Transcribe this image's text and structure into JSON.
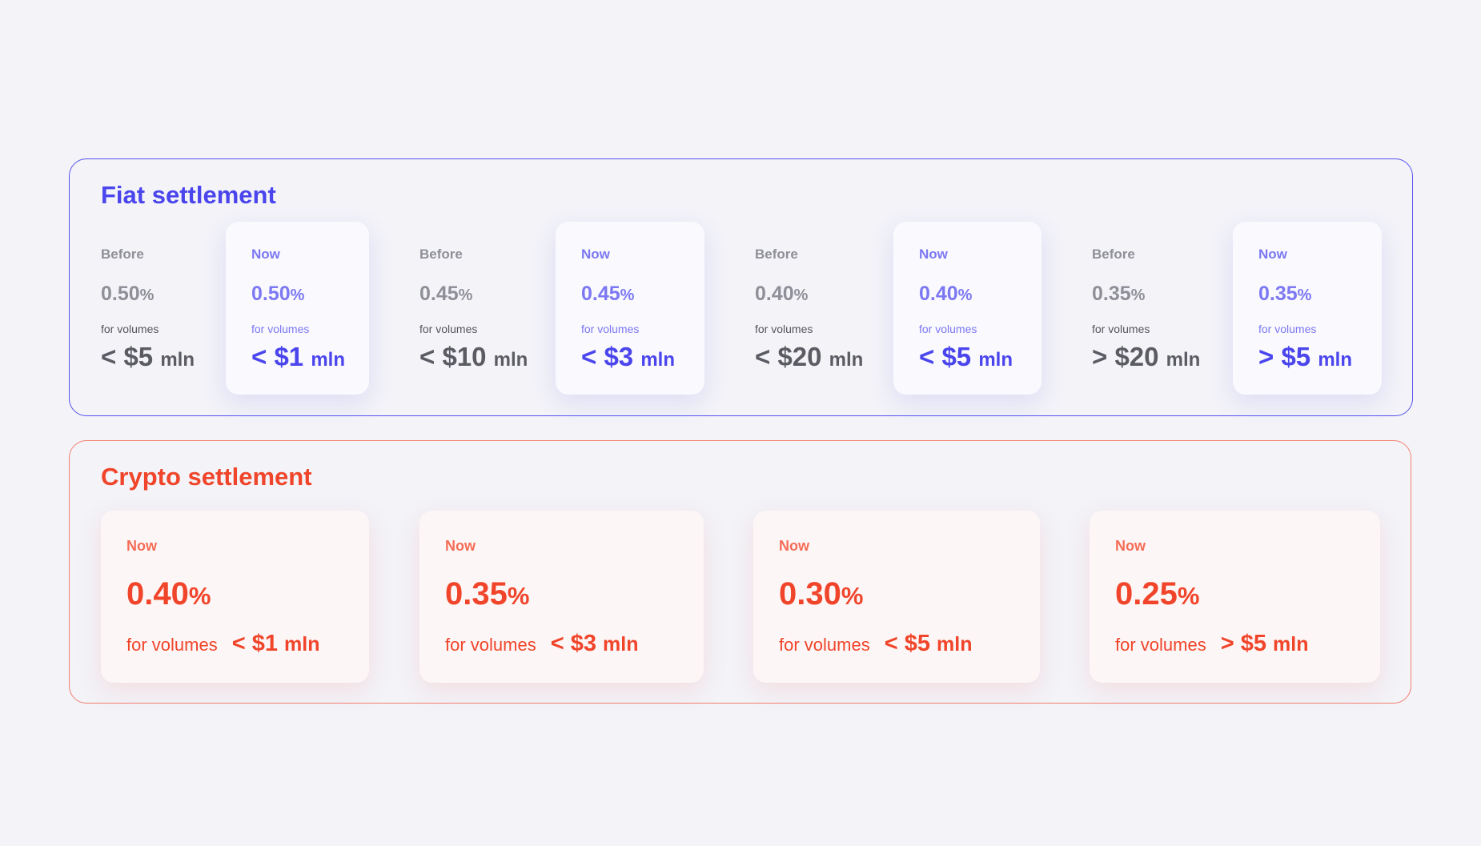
{
  "fiat": {
    "title": "Fiat settlement",
    "colors": {
      "accent": "#4a45ec",
      "muted": "#8f8f98"
    },
    "tiers": [
      {
        "before": {
          "label": "Before",
          "rate": "0.50",
          "unit": "%",
          "for": "for volumes",
          "value": "< $5",
          "value_unit": "mln"
        },
        "now": {
          "label": "Now",
          "rate": "0.50",
          "unit": "%",
          "for": "for volumes",
          "value": "< $1",
          "value_unit": "mln"
        }
      },
      {
        "before": {
          "label": "Before",
          "rate": "0.45",
          "unit": "%",
          "for": "for volumes",
          "value": "< $10",
          "value_unit": "mln"
        },
        "now": {
          "label": "Now",
          "rate": "0.45",
          "unit": "%",
          "for": "for volumes",
          "value": "< $3",
          "value_unit": "mln"
        }
      },
      {
        "before": {
          "label": "Before",
          "rate": "0.40",
          "unit": "%",
          "for": "for volumes",
          "value": "< $20",
          "value_unit": "mln"
        },
        "now": {
          "label": "Now",
          "rate": "0.40",
          "unit": "%",
          "for": "for volumes",
          "value": "< $5",
          "value_unit": "mln"
        }
      },
      {
        "before": {
          "label": "Before",
          "rate": "0.35",
          "unit": "%",
          "for": "for volumes",
          "value": "> $20",
          "value_unit": "mln"
        },
        "now": {
          "label": "Now",
          "rate": "0.35",
          "unit": "%",
          "for": "for volumes",
          "value": "> $5",
          "value_unit": "mln"
        }
      }
    ]
  },
  "crypto": {
    "title": "Crypto settlement",
    "colors": {
      "accent": "#f0452a"
    },
    "tiers": [
      {
        "label": "Now",
        "rate": "0.40",
        "unit": "%",
        "for": "for volumes",
        "value": "< $1",
        "value_unit": "mln"
      },
      {
        "label": "Now",
        "rate": "0.35",
        "unit": "%",
        "for": "for volumes",
        "value": "< $3",
        "value_unit": "mln"
      },
      {
        "label": "Now",
        "rate": "0.30",
        "unit": "%",
        "for": "for volumes",
        "value": "< $5",
        "value_unit": "mln"
      },
      {
        "label": "Now",
        "rate": "0.25",
        "unit": "%",
        "for": "for volumes",
        "value": "> $5",
        "value_unit": "mln"
      }
    ]
  }
}
